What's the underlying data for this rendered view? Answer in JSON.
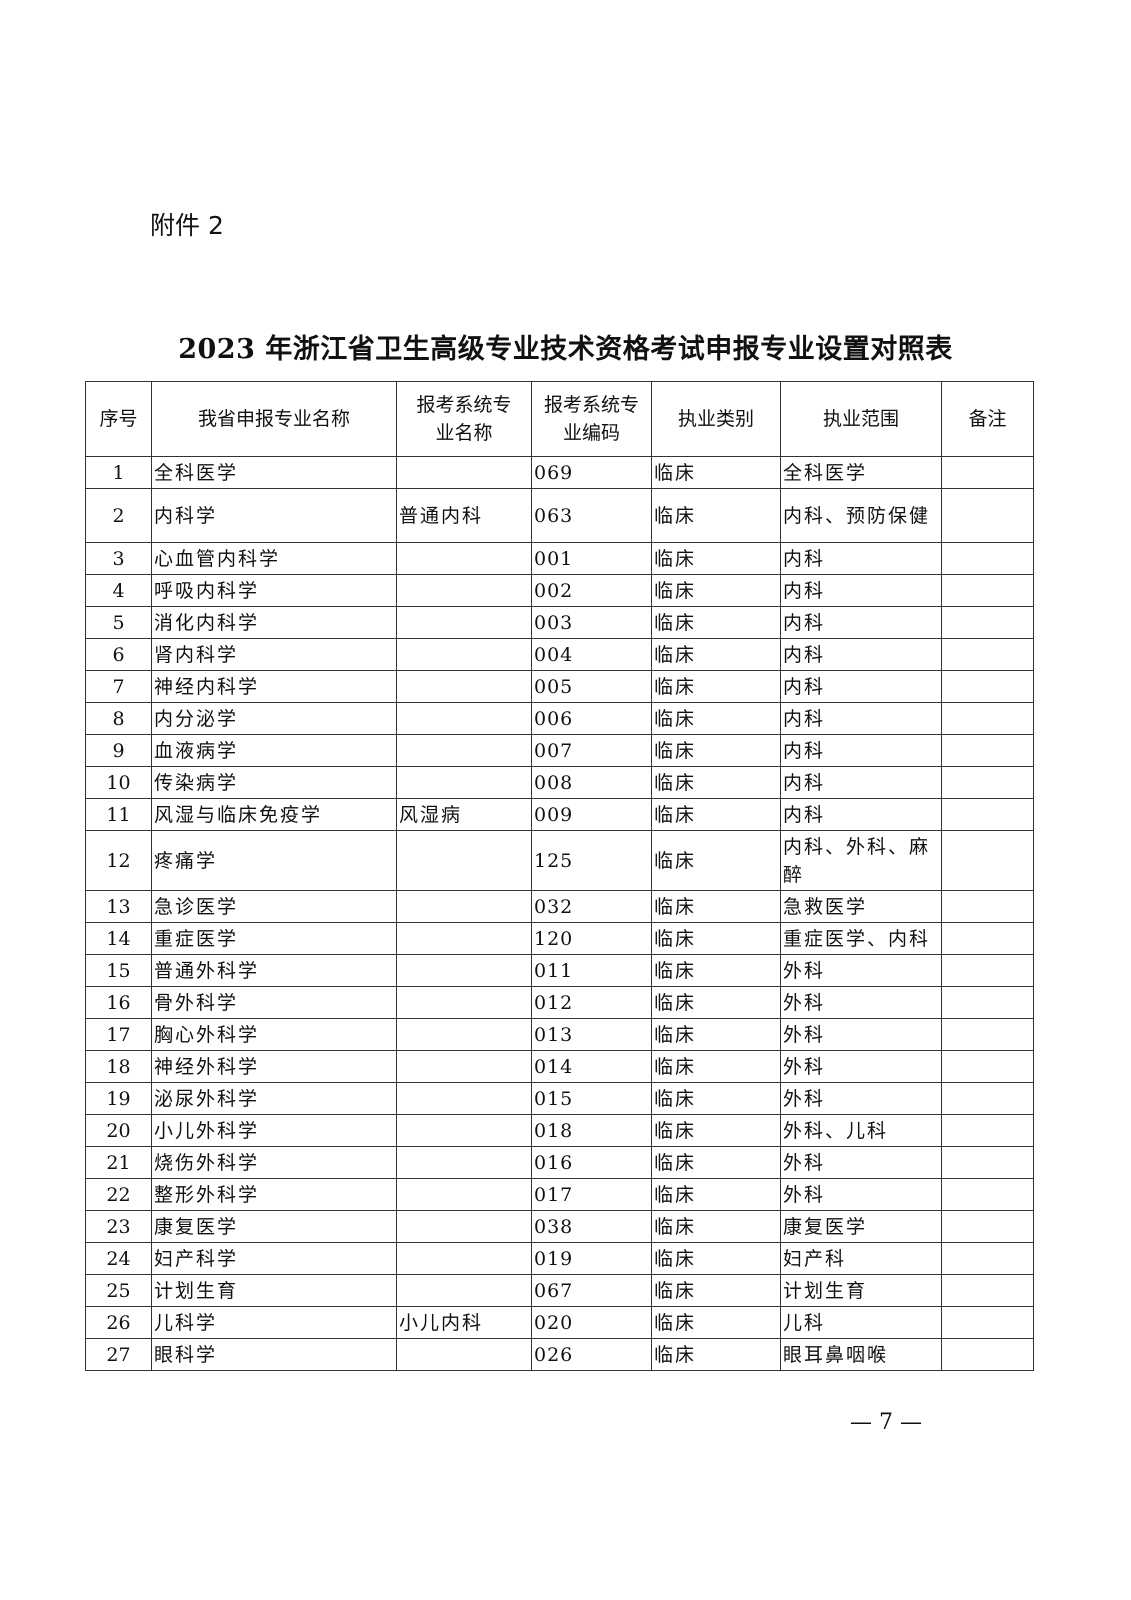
{
  "attachment_label": "附件 2",
  "title": "2023 年浙江省卫生高级专业技术资格考试申报专业设置对照表",
  "table": {
    "headers": [
      "序号",
      "我省申报专业名称",
      "报考系统专业名称",
      "报考系统专业编码",
      "执业类别",
      "执业范围",
      "备注"
    ],
    "rows": [
      [
        "1",
        "全科医学",
        "",
        "069",
        "临床",
        "全科医学",
        ""
      ],
      [
        "2",
        "内科学",
        "普通内科",
        "063",
        "临床",
        "内科、预防保健",
        ""
      ],
      [
        "3",
        "心血管内科学",
        "",
        "001",
        "临床",
        "内科",
        ""
      ],
      [
        "4",
        "呼吸内科学",
        "",
        "002",
        "临床",
        "内科",
        ""
      ],
      [
        "5",
        "消化内科学",
        "",
        "003",
        "临床",
        "内科",
        ""
      ],
      [
        "6",
        "肾内科学",
        "",
        "004",
        "临床",
        "内科",
        ""
      ],
      [
        "7",
        "神经内科学",
        "",
        "005",
        "临床",
        "内科",
        ""
      ],
      [
        "8",
        "内分泌学",
        "",
        "006",
        "临床",
        "内科",
        ""
      ],
      [
        "9",
        "血液病学",
        "",
        "007",
        "临床",
        "内科",
        ""
      ],
      [
        "10",
        "传染病学",
        "",
        "008",
        "临床",
        "内科",
        ""
      ],
      [
        "11",
        "风湿与临床免疫学",
        "风湿病",
        "009",
        "临床",
        "内科",
        ""
      ],
      [
        "12",
        "疼痛学",
        "",
        "125",
        "临床",
        "内科、外科、麻醉",
        ""
      ],
      [
        "13",
        "急诊医学",
        "",
        "032",
        "临床",
        "急救医学",
        ""
      ],
      [
        "14",
        "重症医学",
        "",
        "120",
        "临床",
        "重症医学、内科",
        ""
      ],
      [
        "15",
        "普通外科学",
        "",
        "011",
        "临床",
        "外科",
        ""
      ],
      [
        "16",
        "骨外科学",
        "",
        "012",
        "临床",
        "外科",
        ""
      ],
      [
        "17",
        "胸心外科学",
        "",
        "013",
        "临床",
        "外科",
        ""
      ],
      [
        "18",
        "神经外科学",
        "",
        "014",
        "临床",
        "外科",
        ""
      ],
      [
        "19",
        "泌尿外科学",
        "",
        "015",
        "临床",
        "外科",
        ""
      ],
      [
        "20",
        "小儿外科学",
        "",
        "018",
        "临床",
        "外科、儿科",
        ""
      ],
      [
        "21",
        "烧伤外科学",
        "",
        "016",
        "临床",
        "外科",
        ""
      ],
      [
        "22",
        "整形外科学",
        "",
        "017",
        "临床",
        "外科",
        ""
      ],
      [
        "23",
        "康复医学",
        "",
        "038",
        "临床",
        "康复医学",
        ""
      ],
      [
        "24",
        "妇产科学",
        "",
        "019",
        "临床",
        "妇产科",
        ""
      ],
      [
        "25",
        "计划生育",
        "",
        "067",
        "临床",
        "计划生育",
        ""
      ],
      [
        "26",
        "儿科学",
        "小儿内科",
        "020",
        "临床",
        "儿科",
        ""
      ],
      [
        "27",
        "眼科学",
        "",
        "026",
        "临床",
        "眼耳鼻咽喉",
        ""
      ]
    ]
  },
  "page_number": "— 7 —"
}
